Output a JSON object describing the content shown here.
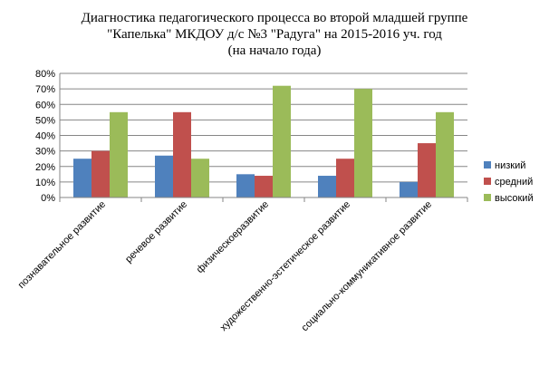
{
  "chart_data": {
    "type": "bar",
    "title_lines": [
      "Диагностика педагогического процесса во второй младшей группе",
      "\"Капелька\" МКДОУ д/с №3 \"Радуга\" на 2015-2016 уч. год",
      "(на начало года)"
    ],
    "categories": [
      "познавательное развитие",
      "речевое развитие",
      "физическоеразвитие",
      "художественно-эстетическое развитие",
      "социально-коммуникативное развитие"
    ],
    "series": [
      {
        "name": "низкий",
        "color": "#4F81BD",
        "values": [
          25,
          27,
          15,
          14,
          10
        ]
      },
      {
        "name": "средний",
        "color": "#C0504D",
        "values": [
          30,
          55,
          14,
          25,
          35
        ]
      },
      {
        "name": "высокий",
        "color": "#9BBB59",
        "values": [
          55,
          25,
          72,
          70,
          55
        ]
      }
    ],
    "ylim": [
      0,
      80
    ],
    "yticks": [
      "0%",
      "10%",
      "20%",
      "30%",
      "40%",
      "50%",
      "60%",
      "70%",
      "80%"
    ],
    "grid": true,
    "legend_position": "right"
  }
}
